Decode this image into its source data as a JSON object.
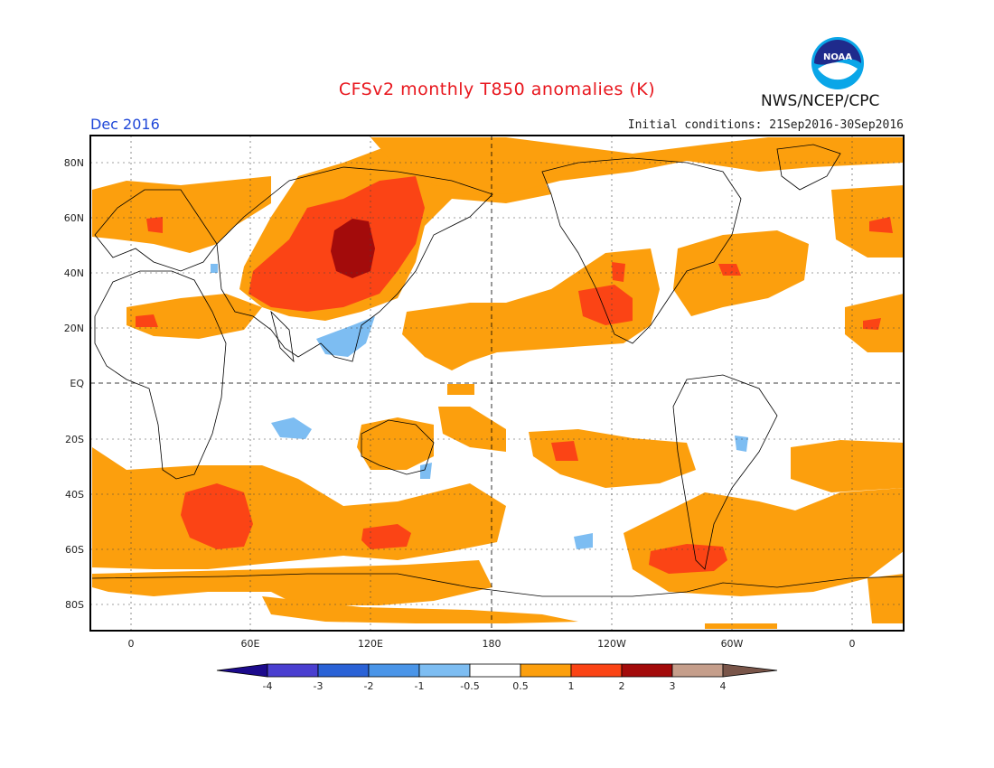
{
  "header": {
    "title": "CFSv2 monthly T850 anomalies (K)",
    "month": "Dec 2016",
    "initial_conditions": "Initial conditions: 21Sep2016-30Sep2016",
    "agency": "NWS/NCEP/CPC",
    "logo_text": "NOAA"
  },
  "map": {
    "lat_labels": [
      "80N",
      "60N",
      "40N",
      "20N",
      "EQ",
      "20S",
      "40S",
      "60S",
      "80S"
    ],
    "lon_labels": [
      "0",
      "60E",
      "120E",
      "180",
      "120W",
      "60W",
      "0"
    ]
  },
  "colorbar": {
    "labels": [
      "-4",
      "-3",
      "-2",
      "-1",
      "-0.5",
      "0.5",
      "1",
      "2",
      "3",
      "4"
    ],
    "colors": [
      "#1c0a8c",
      "#4a3fd0",
      "#2a62d6",
      "#4a95e8",
      "#7dbdf2",
      "#ffffff",
      "#fc9f0d",
      "#fb4415",
      "#a30b0b",
      "#c59e8b",
      "#795549"
    ]
  }
}
